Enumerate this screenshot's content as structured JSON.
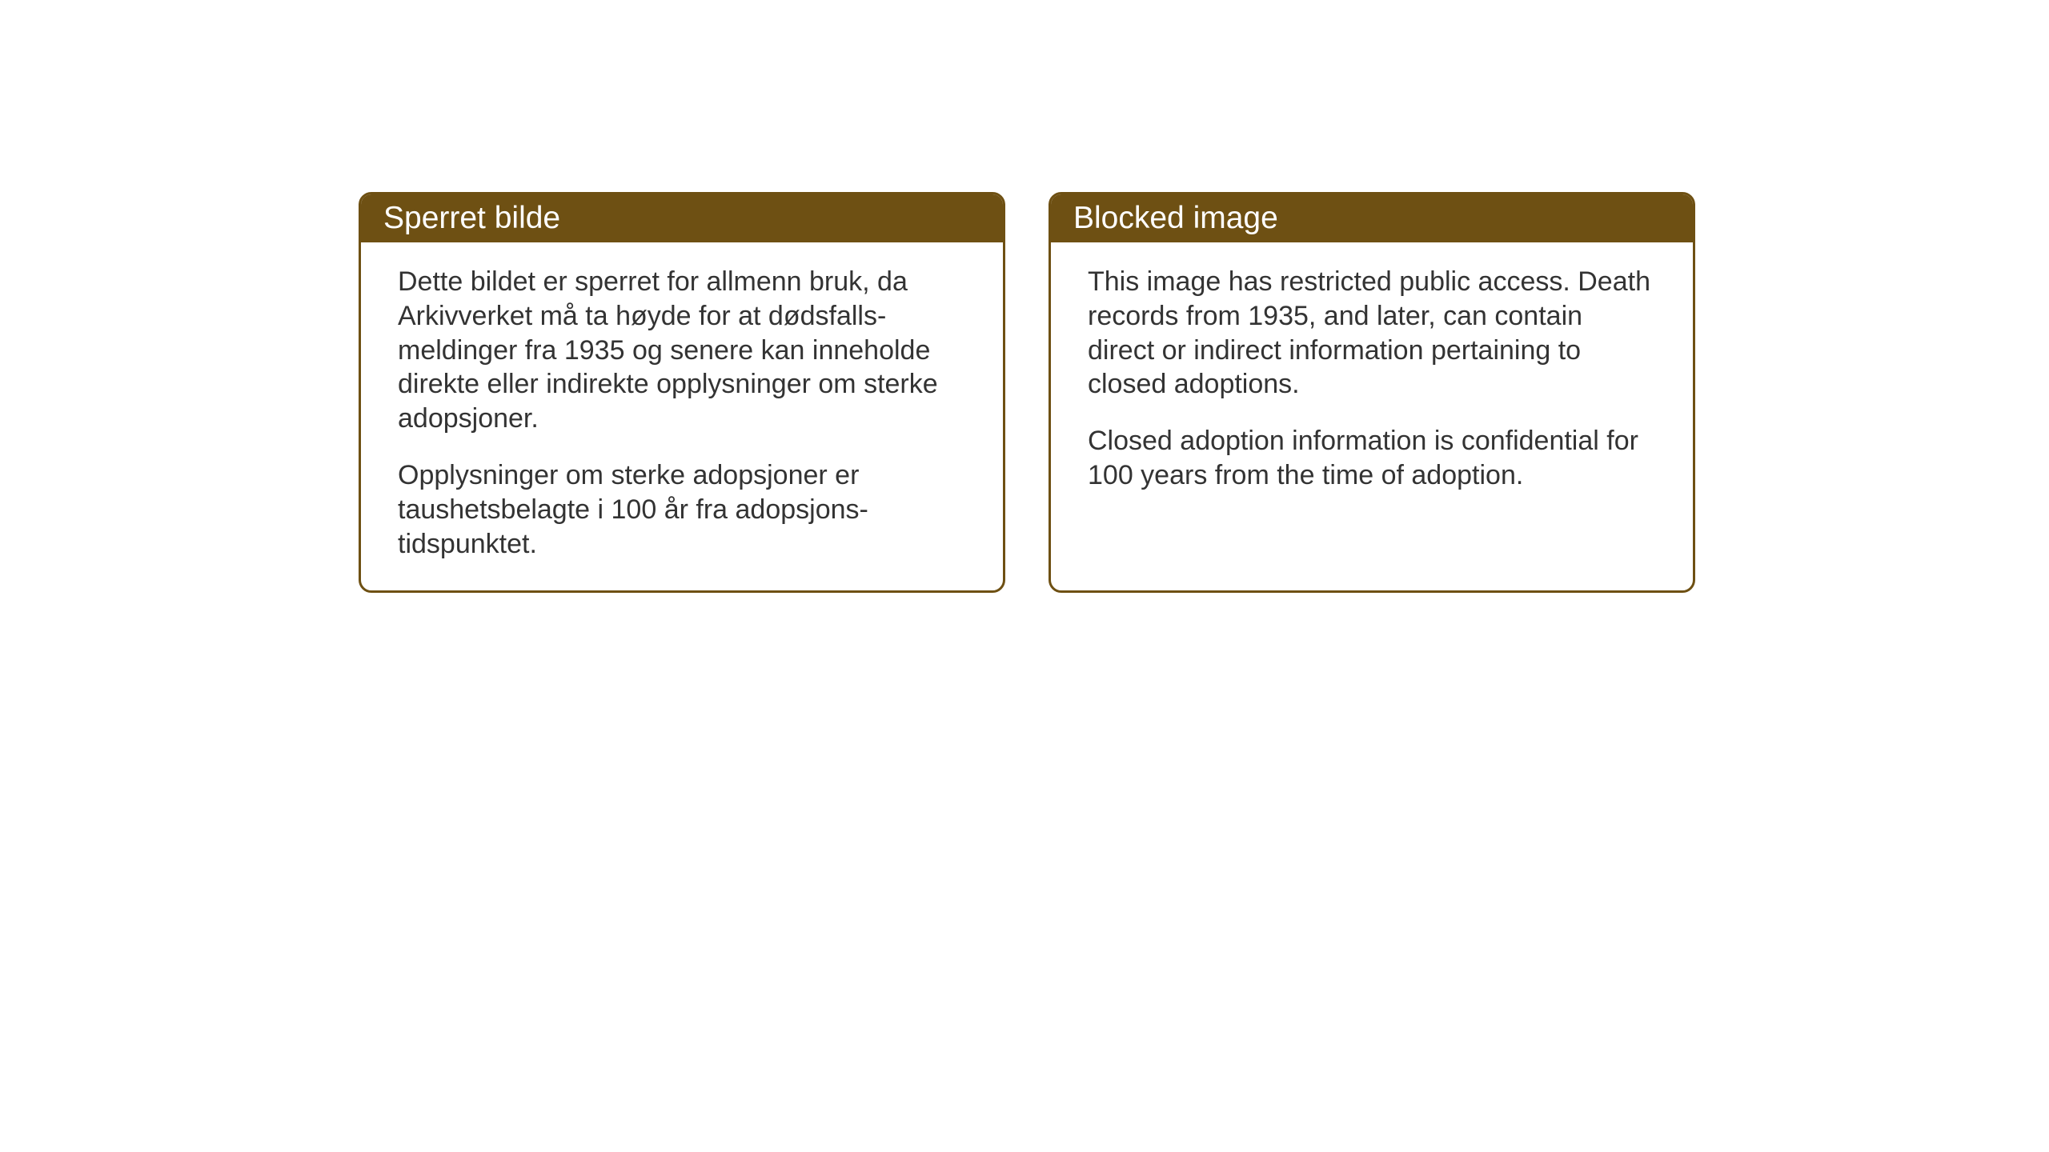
{
  "panels": {
    "norwegian": {
      "title": "Sperret bilde",
      "paragraph1": "Dette bildet er sperret for allmenn bruk, da Arkivverket må ta høyde for at dødsfalls-meldinger fra 1935 og senere kan inneholde direkte eller indirekte opplysninger om sterke adopsjoner.",
      "paragraph2": "Opplysninger om sterke adopsjoner er taushetsbelagte i 100 år fra adopsjons-tidspunktet."
    },
    "english": {
      "title": "Blocked image",
      "paragraph1": "This image has restricted public access. Death records from 1935, and later, can contain direct or indirect information pertaining to closed adoptions.",
      "paragraph2": "Closed adoption information is confidential for 100 years from the time of adoption."
    }
  },
  "styling": {
    "header_background_color": "#6e5013",
    "header_text_color": "#ffffff",
    "border_color": "#6e5013",
    "body_text_color": "#333333",
    "background_color": "#ffffff",
    "header_fontsize": 39,
    "body_fontsize": 34,
    "border_radius": 16,
    "border_width": 3
  }
}
